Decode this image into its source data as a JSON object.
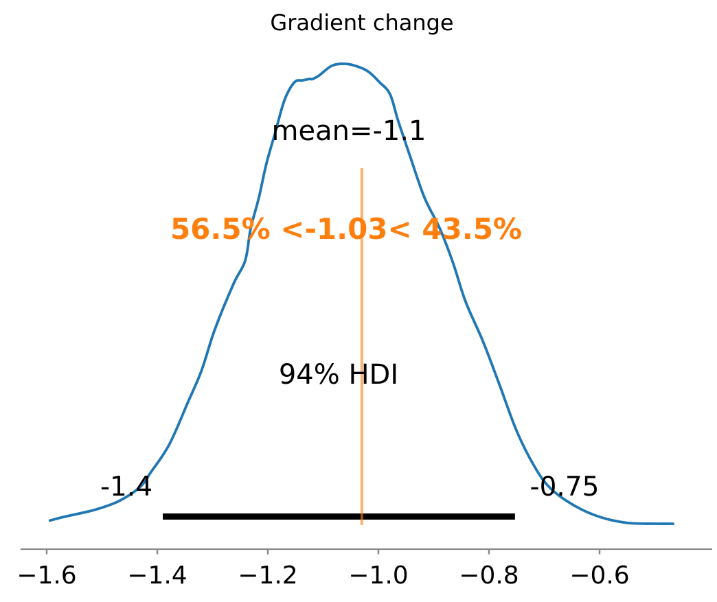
{
  "figure": {
    "background": "#ffffff"
  },
  "chart_data": {
    "type": "kde",
    "title": "Gradient change",
    "mean": -1.1,
    "mean_label": "mean=-1.1",
    "ref_line": {
      "value": -1.03,
      "label": "56.5% <-1.03< 43.5%",
      "pct_below": 56.5,
      "pct_above": 43.5
    },
    "hdi": {
      "label": "94% HDI",
      "low": -1.39,
      "high": -0.753,
      "low_label": "-1.4",
      "high_label": "-0.75"
    },
    "x_axis": {
      "ticks": [
        -1.6,
        -1.4,
        -1.2,
        -1.0,
        -0.8,
        -0.6
      ],
      "tick_labels": [
        "−1.6",
        "−1.4",
        "−1.2",
        "−1.0",
        "−0.8",
        "−0.6"
      ],
      "range": [
        -1.647,
        -0.46
      ]
    },
    "ylim": [
      0,
      1.07
    ],
    "legend": "none",
    "grid": false,
    "kde": {
      "x": [
        -1.594,
        -1.569,
        -1.514,
        -1.47,
        -1.432,
        -1.411,
        -1.378,
        -1.345,
        -1.32,
        -1.296,
        -1.262,
        -1.241,
        -1.231,
        -1.216,
        -1.203,
        -1.188,
        -1.173,
        -1.163,
        -1.15,
        -1.138,
        -1.125,
        -1.119,
        -1.107,
        -1.084,
        -1.06,
        -1.035,
        -1.017,
        -0.998,
        -0.979,
        -0.964,
        -0.943,
        -0.917,
        -0.889,
        -0.865,
        -0.842,
        -0.811,
        -0.78,
        -0.749,
        -0.715,
        -0.687,
        -0.645,
        -0.6,
        -0.55,
        -0.496,
        -0.467
      ],
      "density": [
        0.007,
        0.015,
        0.03,
        0.049,
        0.079,
        0.113,
        0.173,
        0.263,
        0.333,
        0.422,
        0.522,
        0.572,
        0.642,
        0.71,
        0.781,
        0.845,
        0.91,
        0.94,
        0.962,
        0.964,
        0.967,
        0.967,
        0.975,
        0.996,
        1.0,
        0.993,
        0.982,
        0.96,
        0.934,
        0.875,
        0.8,
        0.71,
        0.642,
        0.567,
        0.482,
        0.397,
        0.299,
        0.199,
        0.119,
        0.075,
        0.039,
        0.015,
        0.002,
        0.0,
        0.0
      ]
    },
    "colors": {
      "curve": "#1f77b4",
      "ref_text": "#ff7f0e",
      "ref_line_rgba": "rgba(255,127,14,0.6)",
      "hdi_bar": "#000000",
      "axis": "#888888",
      "text": "#000000"
    }
  }
}
